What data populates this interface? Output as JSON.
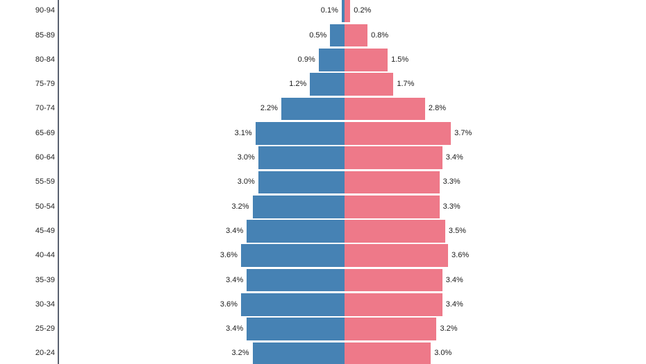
{
  "chart_data": {
    "type": "bar",
    "subtype": "population-pyramid",
    "orientation": "horizontal-diverging",
    "grid": false,
    "legend": false,
    "x_axis_ticks_visible": false,
    "value_labels_position": "outside-bar-ends",
    "axis_line_color": "#5a6270",
    "text_color": "#1a1a1a",
    "categories": [
      "90-94",
      "85-89",
      "80-84",
      "75-79",
      "70-74",
      "65-69",
      "60-64",
      "55-59",
      "50-54",
      "45-49",
      "40-44",
      "35-39",
      "30-34",
      "25-29",
      "20-24"
    ],
    "series": [
      {
        "name": "left",
        "color": "#4682B4",
        "values": [
          0.1,
          0.5,
          0.9,
          1.2,
          2.2,
          3.1,
          3.0,
          3.0,
          3.2,
          3.4,
          3.6,
          3.4,
          3.6,
          3.4,
          3.2
        ],
        "labels": [
          "0.1%",
          "0.5%",
          "0.9%",
          "1.2%",
          "2.2%",
          "3.1%",
          "3.0%",
          "3.0%",
          "3.2%",
          "3.4%",
          "3.6%",
          "3.4%",
          "3.6%",
          "3.4%",
          "3.2%"
        ]
      },
      {
        "name": "right",
        "color": "#EE7989",
        "values": [
          0.2,
          0.8,
          1.5,
          1.7,
          2.8,
          3.7,
          3.4,
          3.3,
          3.3,
          3.5,
          3.6,
          3.4,
          3.4,
          3.2,
          3.0
        ],
        "labels": [
          "0.2%",
          "0.8%",
          "1.5%",
          "1.7%",
          "2.8%",
          "3.7%",
          "3.4%",
          "3.3%",
          "3.3%",
          "3.5%",
          "3.6%",
          "3.4%",
          "3.4%",
          "3.2%",
          "3.0%"
        ]
      }
    ],
    "xlim_percent": [
      0,
      3.7
    ],
    "notes": "top row (90-94) and bottom row (20-24) bars are clipped by the viewport edges"
  }
}
